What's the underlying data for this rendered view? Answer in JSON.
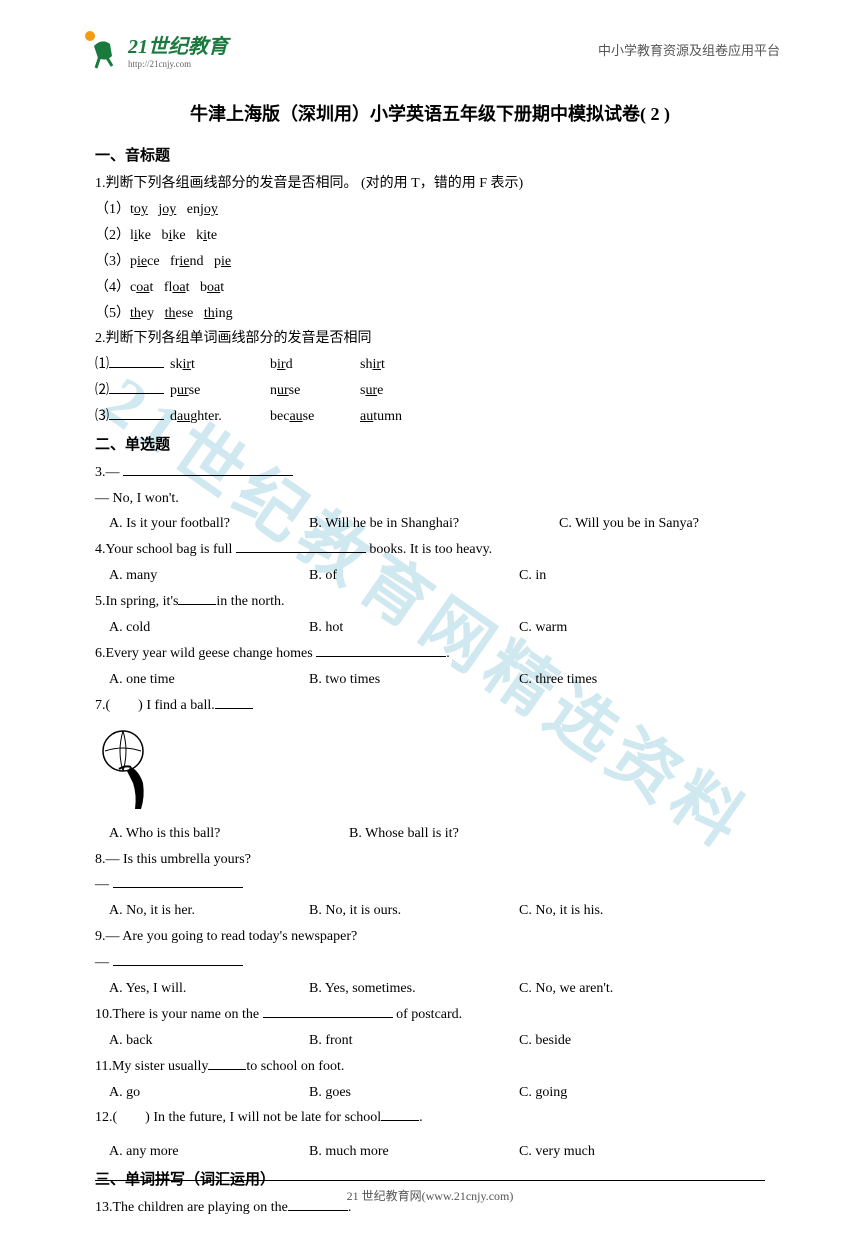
{
  "header": {
    "logo_text": "21世纪教育",
    "logo_sub": "http://21cnjy.com",
    "right_text": "中小学教育资源及组卷应用平台"
  },
  "title": "牛津上海版（深圳用）小学英语五年级下册期中模拟试卷( 2 )",
  "section1": {
    "header": "一、音标题",
    "q1": {
      "stem": "1.判断下列各组画线部分的发音是否相同。 (对的用 T，错的用 F 表示)",
      "items": [
        {
          "n": "（1）",
          "w1p": "t",
          "w1u": "oy",
          "w2p": "j",
          "w2u": "oy",
          "w3p": "enj",
          "w3u": "oy"
        },
        {
          "n": "（2）",
          "w1p": "l",
          "w1u": "i",
          "w1s": "ke",
          "w2p": "b",
          "w2u": "i",
          "w2s": "ke",
          "w3p": "k",
          "w3u": "i",
          "w3s": "te"
        },
        {
          "n": "（3）",
          "w1p": "p",
          "w1u": "ie",
          "w1s": "ce",
          "w2p": "fr",
          "w2u": "ie",
          "w2s": "nd",
          "w3p": "p",
          "w3u": "ie"
        },
        {
          "n": "（4）",
          "w1p": "c",
          "w1u": "oa",
          "w1s": "t",
          "w2p": "fl",
          "w2u": "oa",
          "w2s": "t",
          "w3p": "b",
          "w3u": "oa",
          "w3s": "t"
        },
        {
          "n": "（5）",
          "w1u": "th",
          "w1s": "ey",
          "w2u": "th",
          "w2s": "ese",
          "w3u": "th",
          "w3s": "ing"
        }
      ]
    },
    "q2": {
      "stem": "2.判断下列各组单词画线部分的发音是否相同",
      "items": [
        {
          "n": "⑴",
          "w1": "sk",
          "w1u": "ir",
          "w1s": "t",
          "w2": "b",
          "w2u": "ir",
          "w2s": "d",
          "w3": "sh",
          "w3u": "ir",
          "w3s": "t"
        },
        {
          "n": "⑵",
          "w1": "p",
          "w1u": "ur",
          "w1s": "se",
          "w2": "n",
          "w2u": "ur",
          "w2s": "se",
          "w3": "s",
          "w3u": "ur",
          "w3s": "e"
        },
        {
          "n": "⑶",
          "w1": "d",
          "w1u": "au",
          "w1s": "ghter.",
          "w2": "bec",
          "w2u": "au",
          "w2s": "se",
          "w3": "",
          "w3u": "au",
          "w3s": "tumn"
        }
      ]
    }
  },
  "section2": {
    "header": "二、单选题",
    "q3": {
      "line1": "3.— ",
      "line2": "— No, I won't.",
      "a": "A. Is it your football?",
      "b": "B. Will he be in Shanghai?",
      "c": "C. Will you be in Sanya?"
    },
    "q4": {
      "stem_p1": "4.Your school bag is full ",
      "stem_p2": " books. It is too heavy.",
      "a": "A. many",
      "b": "B. of",
      "c": "C. in"
    },
    "q5": {
      "stem_p1": "5.In spring, it's",
      "stem_p2": "in the north.",
      "a": "A. cold",
      "b": "B. hot",
      "c": "C. warm"
    },
    "q6": {
      "stem_p1": "6.Every year wild geese change homes ",
      "stem_p2": ".",
      "a": "A. one time",
      "b": "B. two times",
      "c": "C. three times"
    },
    "q7": {
      "stem": "7.(　　) I find a ball.",
      "a": "A. Who is this ball?",
      "b": "B. Whose ball is it?"
    },
    "q8": {
      "line1": "8.— Is this umbrella yours?",
      "line2": "— ",
      "a": "A. No, it is her.",
      "b": "B. No, it is ours.",
      "c": "C. No, it is his."
    },
    "q9": {
      "line1": "9.— Are you going to read today's newspaper?",
      "line2": "— ",
      "a": "A. Yes, I will.",
      "b": "B. Yes, sometimes.",
      "c": "C. No, we aren't."
    },
    "q10": {
      "stem_p1": "10.There is your name on the ",
      "stem_p2": " of postcard.",
      "a": "A. back",
      "b": "B. front",
      "c": "C. beside"
    },
    "q11": {
      "stem_p1": "11.My sister usually",
      "stem_p2": "to school on foot.",
      "a": "A. go",
      "b": "B. goes",
      "c": "C. going"
    },
    "q12": {
      "stem_p1": "12.(　　) In the future, I will not be late for school",
      "stem_p2": ".",
      "a": "A. any more",
      "b": "B. much more",
      "c": "C. very much"
    }
  },
  "section3": {
    "header": "三、单词拼写（词汇运用）",
    "q13": {
      "stem_p1": "13.The children are playing on the",
      "stem_p2": "."
    }
  },
  "footer": "21 世纪教育网(www.21cnjy.com)",
  "colors": {
    "logo_green": "#1a7a3e",
    "logo_orange": "#f39c12",
    "watermark": "rgba(120, 190, 210, 0.35)"
  }
}
